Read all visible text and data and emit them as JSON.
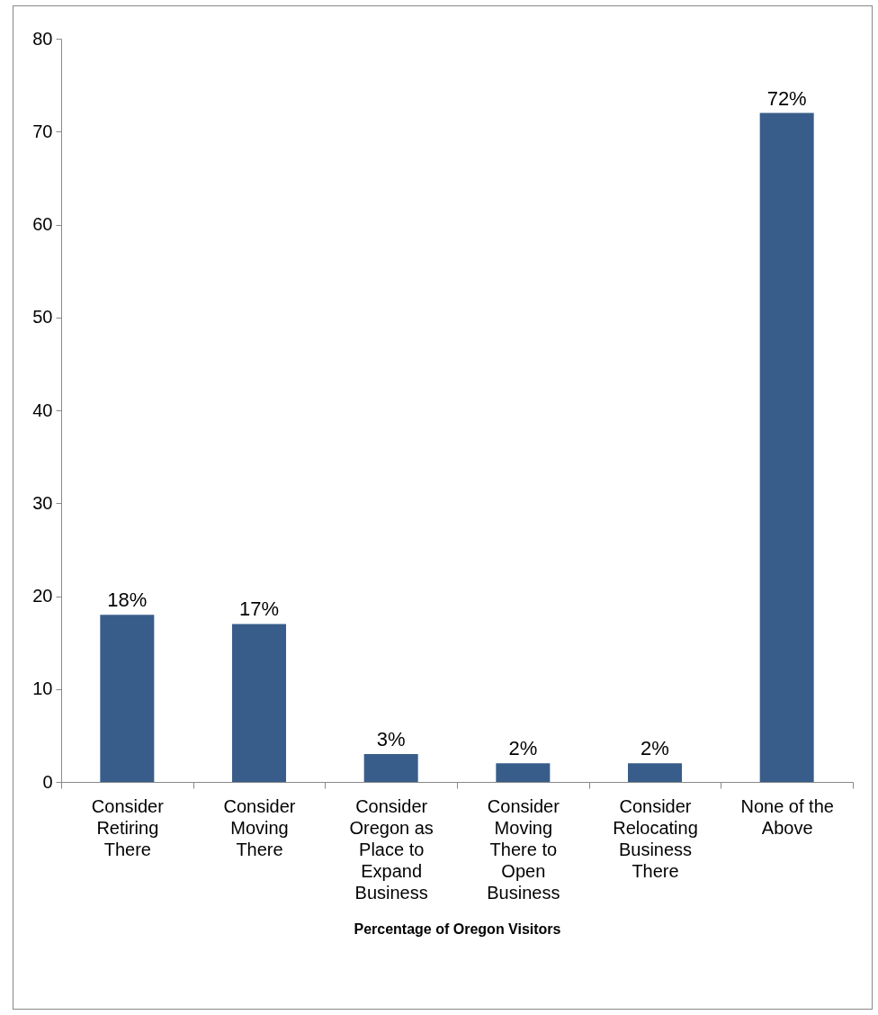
{
  "chart_data": {
    "type": "bar",
    "xlabel": "Percentage of Oregon Visitors",
    "categories": [
      "Consider Retiring There",
      "Consider Moving There",
      "Consider Oregon as Place to Expand Business",
      "Consider Moving There to Open Business",
      "Consider Relocating Business There",
      "None of the Above"
    ],
    "values": [
      18,
      17,
      3,
      2,
      2,
      72
    ],
    "value_labels": [
      "18%",
      "17%",
      "3%",
      "2%",
      "2%",
      "72%"
    ],
    "color": "#385d8a",
    "ylim": [
      0,
      80
    ],
    "yticks": [
      0,
      10,
      20,
      30,
      40,
      50,
      60,
      70,
      80
    ],
    "grid": false
  }
}
